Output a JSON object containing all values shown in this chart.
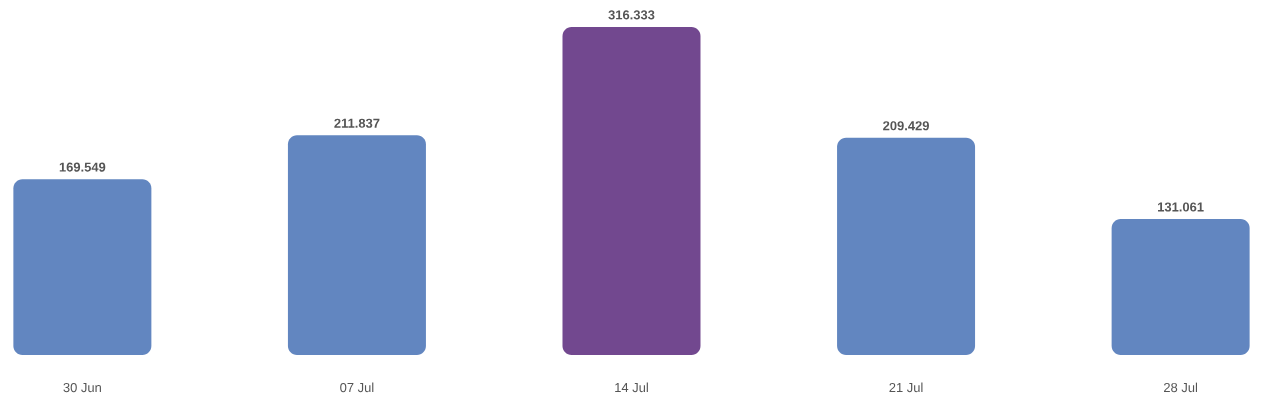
{
  "chart_data": {
    "type": "bar",
    "categories": [
      "30 Jun",
      "07 Jul",
      "14 Jul",
      "21 Jul",
      "28 Jul"
    ],
    "values": [
      169.549,
      211.837,
      316.333,
      209.429,
      131.061
    ],
    "colors": [
      "#6286c0",
      "#6286c0",
      "#72488f",
      "#6286c0",
      "#6286c0"
    ],
    "data_labels": true
  }
}
